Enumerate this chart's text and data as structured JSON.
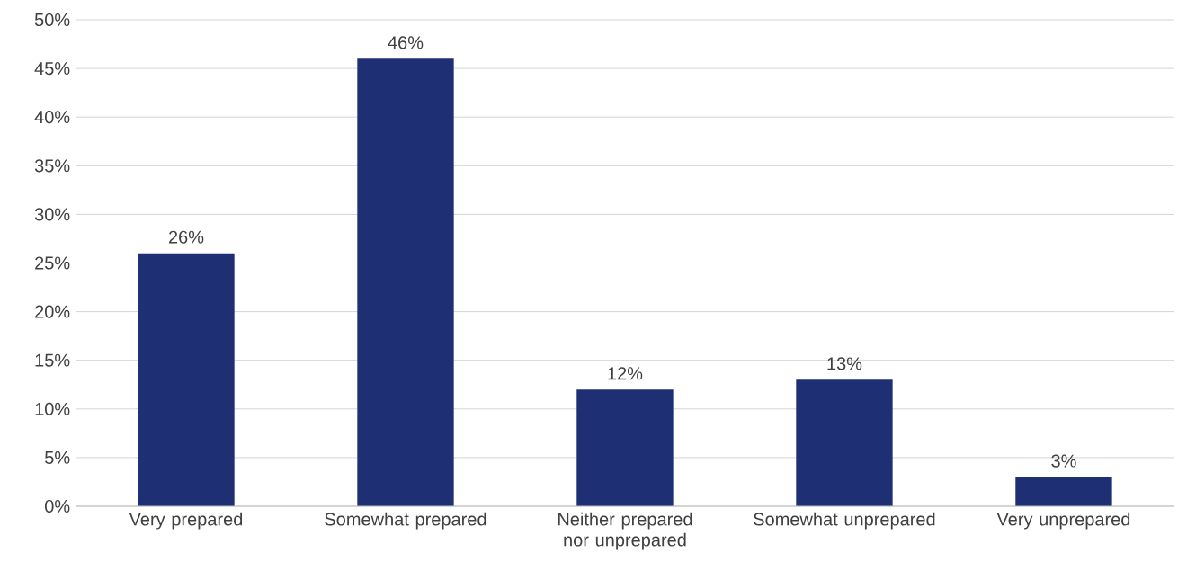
{
  "chart_data": {
    "type": "bar",
    "categories": [
      "Very prepared",
      "Somewhat prepared",
      "Neither prepared nor unprepared",
      "Somewhat unprepared",
      "Very unprepared"
    ],
    "values": [
      26,
      46,
      12,
      13,
      3
    ],
    "value_labels": [
      "26%",
      "46%",
      "12%",
      "13%",
      "3%"
    ],
    "color": "#1f2f73",
    "ylim": [
      0,
      50
    ],
    "yticks": [
      {
        "value": 0,
        "label": "0%"
      },
      {
        "value": 5,
        "label": "5%"
      },
      {
        "value": 10,
        "label": "10%"
      },
      {
        "value": 15,
        "label": "15%"
      },
      {
        "value": 20,
        "label": "20%"
      },
      {
        "value": 25,
        "label": "25%"
      },
      {
        "value": 30,
        "label": "30%"
      },
      {
        "value": 35,
        "label": "35%"
      },
      {
        "value": 40,
        "label": "40%"
      },
      {
        "value": 45,
        "label": "45%"
      },
      {
        "value": 50,
        "label": "50%"
      }
    ],
    "grid": "y"
  }
}
